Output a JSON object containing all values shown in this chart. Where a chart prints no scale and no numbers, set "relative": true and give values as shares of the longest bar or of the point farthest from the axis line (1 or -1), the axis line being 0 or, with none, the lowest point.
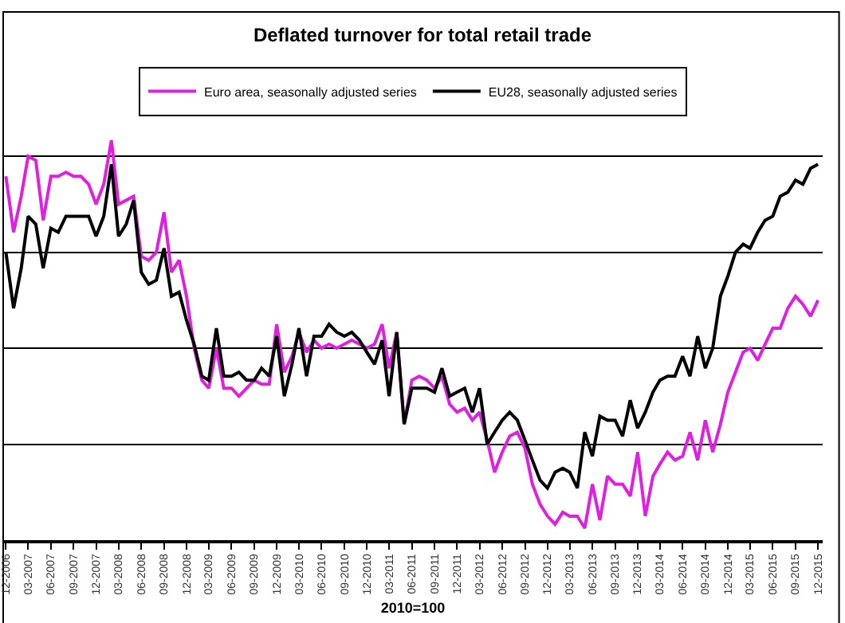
{
  "chart_data": {
    "type": "line",
    "title": "Deflated turnover for total retail trade",
    "xlabel": "2010=100",
    "relative": true,
    "grid": "y",
    "legend": "top",
    "marker": "none",
    "line_style": "solid",
    "x": [
      "2006-12",
      "2007-01",
      "2007-02",
      "2007-03",
      "2007-04",
      "2007-05",
      "2007-06",
      "2007-07",
      "2007-08",
      "2007-09",
      "2007-10",
      "2007-11",
      "2007-12",
      "2008-01",
      "2008-02",
      "2008-03",
      "2008-04",
      "2008-05",
      "2008-06",
      "2008-07",
      "2008-08",
      "2008-09",
      "2008-10",
      "2008-11",
      "2008-12",
      "2009-01",
      "2009-02",
      "2009-03",
      "2009-04",
      "2009-05",
      "2009-06",
      "2009-07",
      "2009-08",
      "2009-09",
      "2009-10",
      "2009-11",
      "2009-12",
      "2010-01",
      "2010-02",
      "2010-03",
      "2010-04",
      "2010-05",
      "2010-06",
      "2010-07",
      "2010-08",
      "2010-09",
      "2010-10",
      "2010-11",
      "2010-12",
      "2011-01",
      "2011-02",
      "2011-03",
      "2011-04",
      "2011-05",
      "2011-06",
      "2011-07",
      "2011-08",
      "2011-09",
      "2011-10",
      "2011-11",
      "2011-12",
      "2012-01",
      "2012-02",
      "2012-03",
      "2012-04",
      "2012-05",
      "2012-06",
      "2012-07",
      "2012-08",
      "2012-09",
      "2012-10",
      "2012-11",
      "2012-12",
      "2013-01",
      "2013-02",
      "2013-03",
      "2013-04",
      "2013-05",
      "2013-06",
      "2013-07",
      "2013-08",
      "2013-09",
      "2013-10",
      "2013-11",
      "2013-12",
      "2014-01",
      "2014-02",
      "2014-03",
      "2014-04",
      "2014-05",
      "2014-06",
      "2014-07",
      "2014-08",
      "2014-09",
      "2014-10",
      "2014-11",
      "2014-12",
      "2015-01",
      "2015-02",
      "2015-03",
      "2015-04",
      "2015-05",
      "2015-06",
      "2015-07",
      "2015-08",
      "2015-09",
      "2015-10",
      "2015-11",
      "2015-12"
    ],
    "xlim": [
      "2006-11-20",
      "2015-12-20"
    ],
    "xticks": [
      {
        "value": "2006-12",
        "label": "12-2006"
      },
      {
        "value": "2007-03",
        "label": "03-2007"
      },
      {
        "value": "2007-06",
        "label": "06-2007"
      },
      {
        "value": "2007-09",
        "label": "09-2007"
      },
      {
        "value": "2007-12",
        "label": "12-2007"
      },
      {
        "value": "2008-03",
        "label": "03-2008"
      },
      {
        "value": "2008-06",
        "label": "06-2008"
      },
      {
        "value": "2008-09",
        "label": "09-2008"
      },
      {
        "value": "2008-12",
        "label": "12-2008"
      },
      {
        "value": "2009-03",
        "label": "03-2009"
      },
      {
        "value": "2009-06",
        "label": "06-2009"
      },
      {
        "value": "2009-09",
        "label": "09-2009"
      },
      {
        "value": "2009-12",
        "label": "12-2009"
      },
      {
        "value": "2010-03",
        "label": "03-2010"
      },
      {
        "value": "2010-06",
        "label": "06-2010"
      },
      {
        "value": "2010-09",
        "label": "09-2010"
      },
      {
        "value": "2010-12",
        "label": "12-2010"
      },
      {
        "value": "2011-03",
        "label": "03-2011"
      },
      {
        "value": "2011-06",
        "label": "06-2011"
      },
      {
        "value": "2011-09",
        "label": "09-2011"
      },
      {
        "value": "2011-12",
        "label": "12-2011"
      },
      {
        "value": "2012-03",
        "label": "03-2012"
      },
      {
        "value": "2012-06",
        "label": "06-2012"
      },
      {
        "value": "2012-09",
        "label": "09-2012"
      },
      {
        "value": "2012-12",
        "label": "12-2012"
      },
      {
        "value": "2013-03",
        "label": "03-2013"
      },
      {
        "value": "2013-06",
        "label": "06-2013"
      },
      {
        "value": "2013-09",
        "label": "09-2013"
      },
      {
        "value": "2013-12",
        "label": "12-2013"
      },
      {
        "value": "2014-03",
        "label": "03-2014"
      },
      {
        "value": "2014-06",
        "label": "06-2014"
      },
      {
        "value": "2014-09",
        "label": "09-2014"
      },
      {
        "value": "2014-12",
        "label": "12-2014"
      },
      {
        "value": "2015-03",
        "label": "03-2015"
      },
      {
        "value": "2015-06",
        "label": "06-2015"
      },
      {
        "value": "2015-09",
        "label": "09-2015"
      },
      {
        "value": "2015-12",
        "label": "12-2015"
      }
    ],
    "series": [
      {
        "name": "Euro area, seasonally adjusted series",
        "color": "#e020e0",
        "values": [
          0.91,
          0.77,
          0.86,
          0.96,
          0.95,
          0.8,
          0.91,
          0.91,
          0.92,
          0.91,
          0.91,
          0.89,
          0.84,
          0.89,
          1.0,
          0.84,
          0.85,
          0.86,
          0.71,
          0.7,
          0.72,
          0.82,
          0.67,
          0.7,
          0.61,
          0.48,
          0.4,
          0.38,
          0.48,
          0.38,
          0.38,
          0.36,
          0.38,
          0.4,
          0.39,
          0.39,
          0.54,
          0.42,
          0.46,
          0.52,
          0.47,
          0.5,
          0.48,
          0.49,
          0.48,
          0.49,
          0.5,
          0.49,
          0.48,
          0.49,
          0.54,
          0.43,
          0.52,
          0.29,
          0.4,
          0.41,
          0.4,
          0.38,
          0.41,
          0.34,
          0.32,
          0.33,
          0.3,
          0.32,
          0.25,
          0.17,
          0.22,
          0.26,
          0.27,
          0.23,
          0.14,
          0.09,
          0.06,
          0.04,
          0.07,
          0.06,
          0.06,
          0.03,
          0.14,
          0.05,
          0.16,
          0.14,
          0.14,
          0.11,
          0.22,
          0.06,
          0.16,
          0.19,
          0.22,
          0.2,
          0.21,
          0.27,
          0.2,
          0.3,
          0.22,
          0.29,
          0.37,
          0.42,
          0.47,
          0.48,
          0.45,
          0.49,
          0.53,
          0.53,
          0.58,
          0.61,
          0.59,
          0.56,
          0.6
        ]
      },
      {
        "name": "EU28, seasonally adjusted series",
        "color": "#000000",
        "values": [
          0.72,
          0.58,
          0.68,
          0.81,
          0.79,
          0.68,
          0.78,
          0.77,
          0.81,
          0.81,
          0.81,
          0.81,
          0.76,
          0.81,
          0.94,
          0.76,
          0.79,
          0.85,
          0.67,
          0.64,
          0.65,
          0.73,
          0.61,
          0.62,
          0.55,
          0.49,
          0.41,
          0.4,
          0.53,
          0.41,
          0.41,
          0.42,
          0.4,
          0.4,
          0.43,
          0.41,
          0.51,
          0.36,
          0.44,
          0.53,
          0.41,
          0.51,
          0.51,
          0.54,
          0.52,
          0.51,
          0.52,
          0.5,
          0.47,
          0.44,
          0.5,
          0.36,
          0.52,
          0.29,
          0.38,
          0.38,
          0.38,
          0.37,
          0.43,
          0.36,
          0.37,
          0.38,
          0.32,
          0.38,
          0.24,
          0.27,
          0.3,
          0.32,
          0.3,
          0.25,
          0.2,
          0.15,
          0.13,
          0.17,
          0.18,
          0.17,
          0.13,
          0.27,
          0.21,
          0.31,
          0.3,
          0.3,
          0.26,
          0.35,
          0.28,
          0.32,
          0.37,
          0.4,
          0.41,
          0.41,
          0.46,
          0.41,
          0.51,
          0.43,
          0.48,
          0.61,
          0.66,
          0.72,
          0.74,
          0.73,
          0.77,
          0.8,
          0.81,
          0.86,
          0.87,
          0.9,
          0.89,
          0.93,
          0.94
        ]
      }
    ]
  }
}
